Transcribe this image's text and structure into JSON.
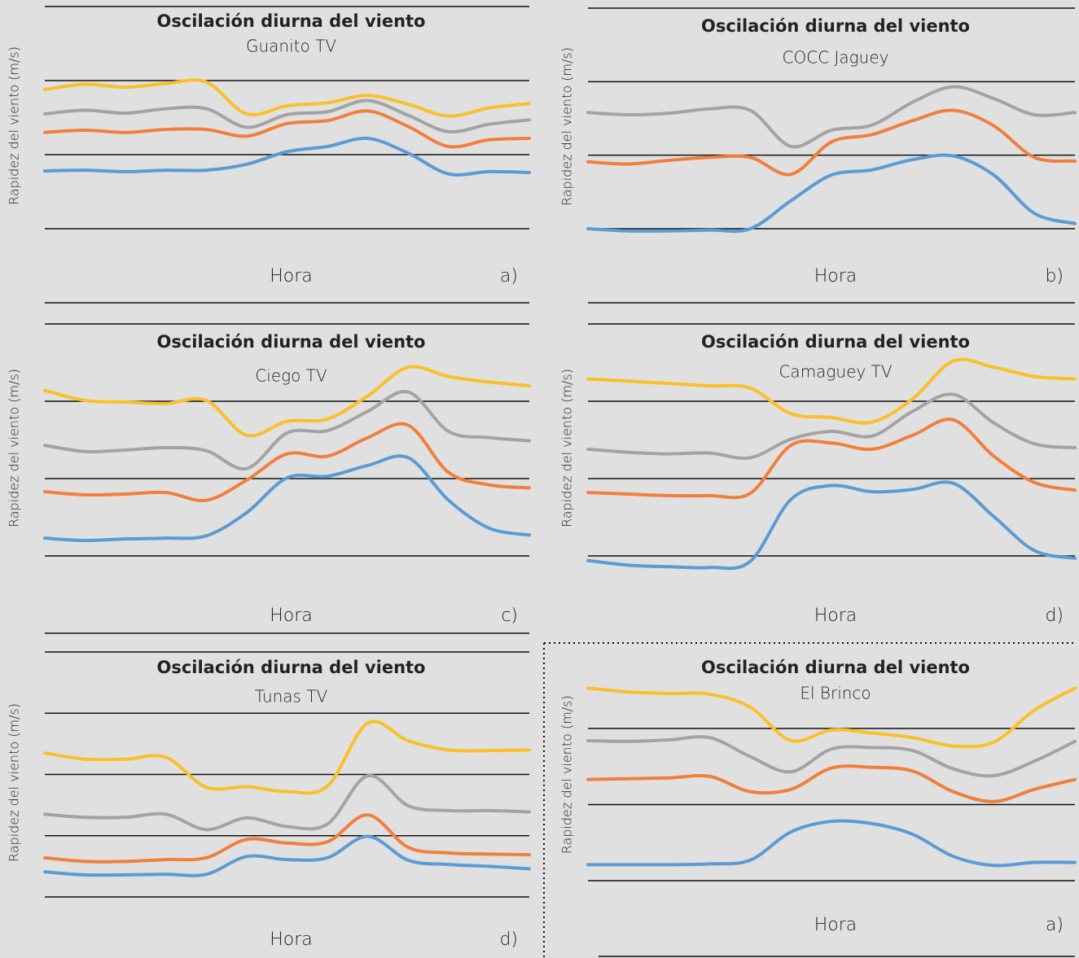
{
  "chart_data": [
    {
      "type": "line",
      "title": "Oscilación diurna del viento",
      "subtitle": "Guanito TV",
      "xlabel": "Hora",
      "ylabel": "Rapidez del viento (m/s)",
      "panel_label": "a)",
      "categories": [
        null,
        null,
        null,
        null,
        null,
        null,
        null,
        null,
        null,
        null,
        null,
        null,
        null
      ],
      "series": [
        {
          "color": "#fbbf2a",
          "values": [
            1.88,
            1.95,
            1.91,
            1.96,
            1.98,
            1.55,
            1.66,
            1.7,
            1.8,
            1.68,
            1.52,
            1.63,
            1.69
          ]
        },
        {
          "color": "#a3a3a3",
          "values": [
            1.55,
            1.6,
            1.56,
            1.62,
            1.62,
            1.37,
            1.54,
            1.58,
            1.73,
            1.53,
            1.31,
            1.41,
            1.47
          ]
        },
        {
          "color": "#f07f3c",
          "values": [
            1.3,
            1.33,
            1.3,
            1.34,
            1.34,
            1.25,
            1.42,
            1.46,
            1.59,
            1.38,
            1.11,
            1.2,
            1.22
          ]
        },
        {
          "color": "#5b9bd5",
          "values": [
            0.78,
            0.79,
            0.77,
            0.79,
            0.79,
            0.87,
            1.04,
            1.11,
            1.22,
            1.02,
            0.74,
            0.77,
            0.76
          ]
        }
      ],
      "ylim": [
        0,
        3
      ],
      "yticks": [
        0,
        1,
        2,
        3
      ],
      "grid": true,
      "tick_labels": false
    },
    {
      "type": "line",
      "title": "Oscilación diurna del viento",
      "subtitle": "COCC Jaguey",
      "xlabel": "Hora",
      "ylabel": "Rapidez del viento (m/s)",
      "panel_label": "b)",
      "categories": [
        null,
        null,
        null,
        null,
        null,
        null,
        null,
        null,
        null,
        null,
        null,
        null,
        null
      ],
      "series": [
        {
          "color": "#a3a3a3",
          "values": [
            1.58,
            1.55,
            1.57,
            1.63,
            1.61,
            1.12,
            1.34,
            1.41,
            1.72,
            1.93,
            1.77,
            1.55,
            1.58
          ]
        },
        {
          "color": "#f07f3c",
          "values": [
            0.91,
            0.88,
            0.93,
            0.97,
            0.97,
            0.74,
            1.18,
            1.28,
            1.47,
            1.61,
            1.4,
            0.97,
            0.92
          ]
        },
        {
          "color": "#5b9bd5",
          "values": [
            0,
            -0.03,
            -0.03,
            -0.02,
            0,
            0.38,
            0.73,
            0.8,
            0.94,
            0.99,
            0.73,
            0.21,
            0.07
          ]
        }
      ],
      "ylim": [
        0,
        3
      ],
      "yticks": [
        0,
        1,
        2,
        3
      ],
      "grid": true,
      "tick_labels": false
    },
    {
      "type": "line",
      "title": "Oscilación diurna del viento",
      "subtitle": "Ciego TV",
      "xlabel": "Hora",
      "ylabel": "Rapidez del viento (m/s)",
      "panel_label": "c)",
      "categories": [
        null,
        null,
        null,
        null,
        null,
        null,
        null,
        null,
        null,
        null,
        null,
        null,
        null
      ],
      "series": [
        {
          "color": "#fbbf2a",
          "values": [
            2.14,
            2.01,
            1.99,
            1.97,
            2.01,
            1.56,
            1.74,
            1.77,
            2.07,
            2.44,
            2.32,
            2.25,
            2.2
          ]
        },
        {
          "color": "#a3a3a3",
          "values": [
            1.43,
            1.35,
            1.37,
            1.4,
            1.36,
            1.13,
            1.59,
            1.62,
            1.87,
            2.12,
            1.61,
            1.53,
            1.49
          ]
        },
        {
          "color": "#f07f3c",
          "values": [
            0.83,
            0.79,
            0.8,
            0.82,
            0.72,
            0.98,
            1.32,
            1.29,
            1.53,
            1.69,
            1.08,
            0.92,
            0.88
          ]
        },
        {
          "color": "#5b9bd5",
          "values": [
            0.23,
            0.2,
            0.22,
            0.23,
            0.26,
            0.56,
            1.01,
            1.03,
            1.17,
            1.27,
            0.72,
            0.36,
            0.27
          ]
        }
      ],
      "ylim": [
        0,
        3
      ],
      "yticks": [
        0,
        1,
        2,
        3
      ],
      "grid": true,
      "tick_labels": false
    },
    {
      "type": "line",
      "title": "Oscilación diurna del viento",
      "subtitle": "Camaguey TV",
      "xlabel": "Hora",
      "ylabel": "Rapidez del viento (m/s)",
      "panel_label": "d)",
      "categories": [
        null,
        null,
        null,
        null,
        null,
        null,
        null,
        null,
        null,
        null,
        null,
        null,
        null
      ],
      "series": [
        {
          "color": "#fbbf2a",
          "values": [
            2.29,
            2.26,
            2.23,
            2.2,
            2.17,
            1.84,
            1.79,
            1.73,
            2.03,
            2.52,
            2.44,
            2.32,
            2.29
          ]
        },
        {
          "color": "#a3a3a3",
          "values": [
            1.38,
            1.34,
            1.32,
            1.33,
            1.27,
            1.51,
            1.61,
            1.55,
            1.87,
            2.09,
            1.72,
            1.45,
            1.4
          ]
        },
        {
          "color": "#f07f3c",
          "values": [
            0.82,
            0.8,
            0.78,
            0.78,
            0.81,
            1.43,
            1.46,
            1.38,
            1.56,
            1.76,
            1.29,
            0.95,
            0.85
          ]
        },
        {
          "color": "#5b9bd5",
          "values": [
            -0.06,
            -0.12,
            -0.14,
            -0.15,
            -0.07,
            0.73,
            0.91,
            0.83,
            0.86,
            0.94,
            0.51,
            0.07,
            -0.03
          ]
        }
      ],
      "ylim": [
        0,
        3
      ],
      "yticks": [
        0,
        1,
        2,
        3
      ],
      "grid": true,
      "tick_labels": false
    },
    {
      "type": "line",
      "title": "Oscilación diurna del viento",
      "subtitle": "Tunas TV",
      "xlabel": "Hora",
      "ylabel": "Rapidez del viento (m/s)",
      "panel_label": "d)",
      "categories": [
        null,
        null,
        null,
        null,
        null,
        null,
        null,
        null,
        null,
        null,
        null,
        null,
        null
      ],
      "series": [
        {
          "color": "#fbbf2a",
          "values": [
            2.35,
            2.25,
            2.25,
            2.28,
            1.79,
            1.8,
            1.72,
            1.81,
            2.84,
            2.55,
            2.4,
            2.39,
            2.4
          ]
        },
        {
          "color": "#a3a3a3",
          "values": [
            1.35,
            1.3,
            1.3,
            1.35,
            1.1,
            1.29,
            1.15,
            1.19,
            1.98,
            1.49,
            1.41,
            1.41,
            1.39
          ]
        },
        {
          "color": "#f07f3c",
          "values": [
            0.64,
            0.58,
            0.58,
            0.61,
            0.64,
            0.94,
            0.88,
            0.9,
            1.34,
            0.81,
            0.72,
            0.7,
            0.69
          ]
        },
        {
          "color": "#5b9bd5",
          "values": [
            0.41,
            0.36,
            0.36,
            0.37,
            0.37,
            0.66,
            0.61,
            0.64,
            0.99,
            0.6,
            0.53,
            0.5,
            0.46
          ]
        }
      ],
      "ylim": [
        0,
        4
      ],
      "yticks": [
        0,
        1,
        2,
        3,
        4
      ],
      "grid": true,
      "tick_labels": false
    },
    {
      "type": "line",
      "title": "Oscilación diurna del viento",
      "subtitle": "El Brinco",
      "xlabel": "Hora",
      "ylabel": "Rapidez del viento (m/s)",
      "panel_label": "a)",
      "categories": [
        null,
        null,
        null,
        null,
        null,
        null,
        null,
        null,
        null,
        null,
        null,
        null,
        null
      ],
      "series": [
        {
          "color": "#fbbf2a",
          "values": [
            2.53,
            2.48,
            2.46,
            2.45,
            2.28,
            1.84,
            1.98,
            1.94,
            1.88,
            1.77,
            1.82,
            2.24,
            2.53
          ]
        },
        {
          "color": "#a3a3a3",
          "values": [
            1.84,
            1.83,
            1.85,
            1.88,
            1.63,
            1.43,
            1.73,
            1.75,
            1.71,
            1.47,
            1.38,
            1.57,
            1.83
          ]
        },
        {
          "color": "#f07f3c",
          "values": [
            1.33,
            1.34,
            1.35,
            1.37,
            1.17,
            1.2,
            1.48,
            1.49,
            1.44,
            1.17,
            1.04,
            1.2,
            1.33
          ]
        },
        {
          "color": "#5b9bd5",
          "values": [
            0.21,
            0.21,
            0.21,
            0.22,
            0.27,
            0.64,
            0.78,
            0.75,
            0.61,
            0.32,
            0.2,
            0.24,
            0.24
          ]
        }
      ],
      "ylim": [
        0,
        3
      ],
      "yticks": [
        0,
        1,
        2
      ],
      "grid": true,
      "tick_labels": false
    }
  ]
}
